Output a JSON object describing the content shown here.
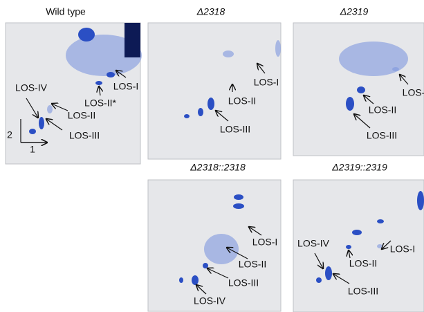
{
  "panels": [
    {
      "title": "Wild type",
      "labels": [
        "LOS-I",
        "LOS-II*",
        "LOS-IV",
        "LOS-II",
        "LOS-III"
      ],
      "axes": [
        "2",
        "1"
      ]
    },
    {
      "title": "Δ2318",
      "labels": [
        "LOS-I",
        "LOS-II",
        "LOS-III"
      ]
    },
    {
      "title": "Δ2319",
      "labels": [
        "LOS-",
        "LOS-II",
        "LOS-III"
      ]
    },
    {
      "title": "Δ2318::2318",
      "labels": [
        "LOS-I",
        "LOS-II",
        "LOS-III",
        "LOS-IV"
      ]
    },
    {
      "title": "Δ2319::2319",
      "labels": [
        "LOS-IV",
        "LOS-II",
        "LOS-I",
        "LOS-III"
      ]
    }
  ]
}
